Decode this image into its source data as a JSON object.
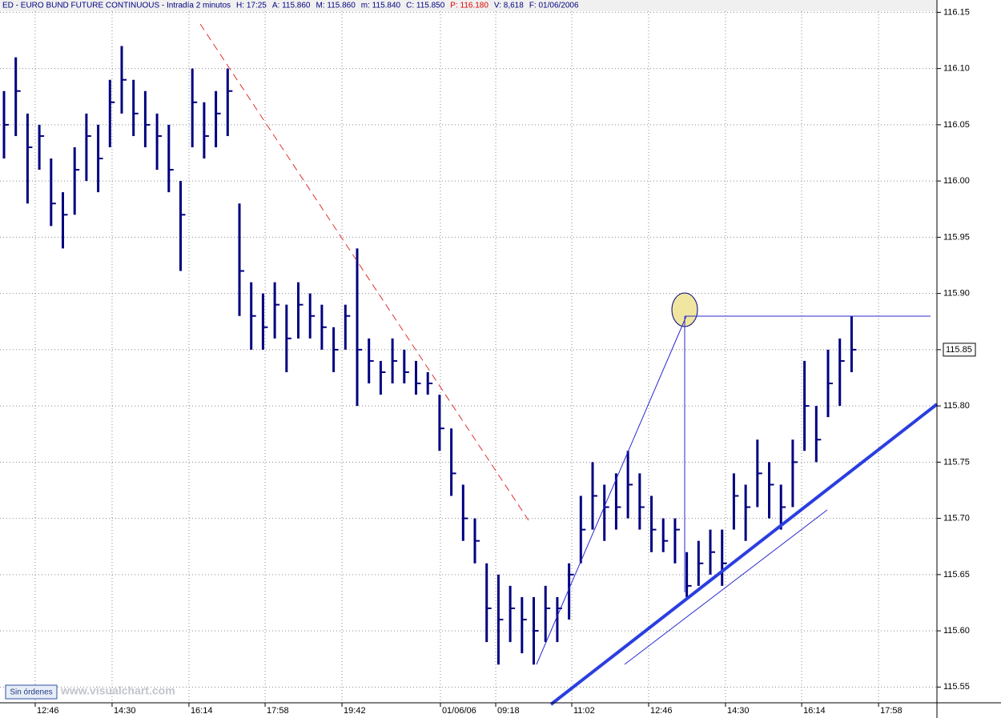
{
  "header": {
    "parts": [
      "ED - EURO BUND FUTURE CONTINUOUS - Intradía 2 minutos",
      "H: 17:25",
      "A: 115.860",
      "M: 115.860",
      "m: 115.840",
      "C: 115.850",
      "P: 116.180",
      "V: 8,618",
      "F: 01/06/2006"
    ]
  },
  "footer": {
    "button": "Sin órdenes",
    "watermark": "www.visualchart.com"
  },
  "chart_data": {
    "type": "ohlc",
    "color": "#000080",
    "grid": true,
    "x": [
      0,
      1,
      2,
      3,
      4,
      5,
      6,
      7,
      8,
      9,
      10,
      11,
      12,
      13,
      14,
      15,
      16,
      17,
      18,
      19,
      20,
      21,
      22,
      23,
      24,
      25,
      26,
      27,
      28,
      29,
      30,
      31,
      32,
      33,
      34,
      35,
      36,
      37,
      38,
      39,
      40,
      41,
      42,
      43,
      44,
      45,
      46,
      47,
      48,
      49,
      50,
      51,
      52,
      53,
      54,
      55,
      56,
      57,
      58,
      59,
      60,
      61,
      62,
      63,
      64,
      65,
      66,
      67,
      68,
      69,
      70,
      71,
      72
    ],
    "high": [
      116.08,
      116.11,
      116.06,
      116.05,
      116.02,
      115.99,
      116.03,
      116.06,
      116.05,
      116.09,
      116.12,
      116.09,
      116.08,
      116.06,
      116.05,
      116.0,
      116.1,
      116.07,
      116.08,
      116.1,
      115.98,
      115.91,
      115.9,
      115.91,
      115.89,
      115.91,
      115.9,
      115.89,
      115.87,
      115.89,
      115.94,
      115.86,
      115.84,
      115.86,
      115.85,
      115.84,
      115.83,
      115.81,
      115.78,
      115.73,
      115.7,
      115.66,
      115.65,
      115.64,
      115.63,
      115.63,
      115.64,
      115.63,
      115.66,
      115.72,
      115.75,
      115.73,
      115.74,
      115.76,
      115.74,
      115.72,
      115.7,
      115.7,
      115.67,
      115.68,
      115.69,
      115.69,
      115.74,
      115.73,
      115.77,
      115.75,
      115.73,
      115.77,
      115.84,
      115.8,
      115.85,
      115.86,
      115.88
    ],
    "low": [
      116.02,
      116.04,
      115.98,
      116.01,
      115.96,
      115.94,
      115.97,
      116.0,
      115.99,
      116.03,
      116.06,
      116.04,
      116.03,
      116.01,
      115.99,
      115.92,
      116.03,
      116.02,
      116.03,
      116.04,
      115.88,
      115.85,
      115.85,
      115.86,
      115.83,
      115.86,
      115.86,
      115.85,
      115.83,
      115.85,
      115.8,
      115.82,
      115.81,
      115.82,
      115.82,
      115.81,
      115.81,
      115.76,
      115.72,
      115.68,
      115.66,
      115.59,
      115.57,
      115.59,
      115.58,
      115.57,
      115.59,
      115.59,
      115.61,
      115.66,
      115.69,
      115.68,
      115.69,
      115.7,
      115.69,
      115.67,
      115.67,
      115.66,
      115.63,
      115.64,
      115.65,
      115.64,
      115.69,
      115.68,
      115.71,
      115.7,
      115.69,
      115.71,
      115.76,
      115.75,
      115.79,
      115.8,
      115.83
    ],
    "close": [
      116.05,
      116.08,
      116.03,
      116.04,
      115.98,
      115.97,
      116.01,
      116.04,
      116.02,
      116.07,
      116.09,
      116.06,
      116.05,
      116.04,
      116.01,
      115.97,
      116.07,
      116.04,
      116.06,
      116.08,
      115.92,
      115.88,
      115.87,
      115.89,
      115.86,
      115.89,
      115.88,
      115.87,
      115.85,
      115.88,
      115.85,
      115.84,
      115.83,
      115.84,
      115.83,
      115.82,
      115.82,
      115.78,
      115.74,
      115.7,
      115.68,
      115.62,
      115.61,
      115.62,
      115.61,
      115.6,
      115.62,
      115.62,
      115.65,
      115.69,
      115.72,
      115.71,
      115.71,
      115.73,
      115.71,
      115.69,
      115.68,
      115.69,
      115.64,
      115.66,
      115.67,
      115.66,
      115.72,
      115.71,
      115.74,
      115.73,
      115.71,
      115.75,
      115.8,
      115.77,
      115.82,
      115.84,
      115.85
    ],
    "last_price": 115.85,
    "xlim": [
      -0.34,
      79.25
    ],
    "xticks": [
      {
        "value": 2.65,
        "label": "12:46"
      },
      {
        "value": 9.18,
        "label": "14:30"
      },
      {
        "value": 15.71,
        "label": "16:14"
      },
      {
        "value": 22.18,
        "label": "17:58"
      },
      {
        "value": 28.71,
        "label": "19:42"
      },
      {
        "value": 37.07,
        "label": "01/06/06"
      },
      {
        "value": 41.77,
        "label": "09:18"
      },
      {
        "value": 48.23,
        "label": "11:02"
      },
      {
        "value": 54.76,
        "label": "12:46"
      },
      {
        "value": 61.29,
        "label": "14:30"
      },
      {
        "value": 67.76,
        "label": "16:14"
      },
      {
        "value": 74.29,
        "label": "17:58"
      }
    ],
    "ylim": [
      115.536,
      116.151
    ],
    "yticks": [
      115.55,
      {
        "value": 115.6,
        "label": "115.60"
      },
      115.65,
      {
        "value": 115.7,
        "label": "115.70"
      },
      115.75,
      {
        "value": 115.8,
        "label": "115.80"
      },
      115.85,
      {
        "value": 115.9,
        "label": "115.90"
      },
      115.95,
      {
        "value": 116,
        "label": "116.00"
      },
      116.05,
      {
        "value": 116.1,
        "label": "116.10"
      },
      116.15
    ]
  }
}
